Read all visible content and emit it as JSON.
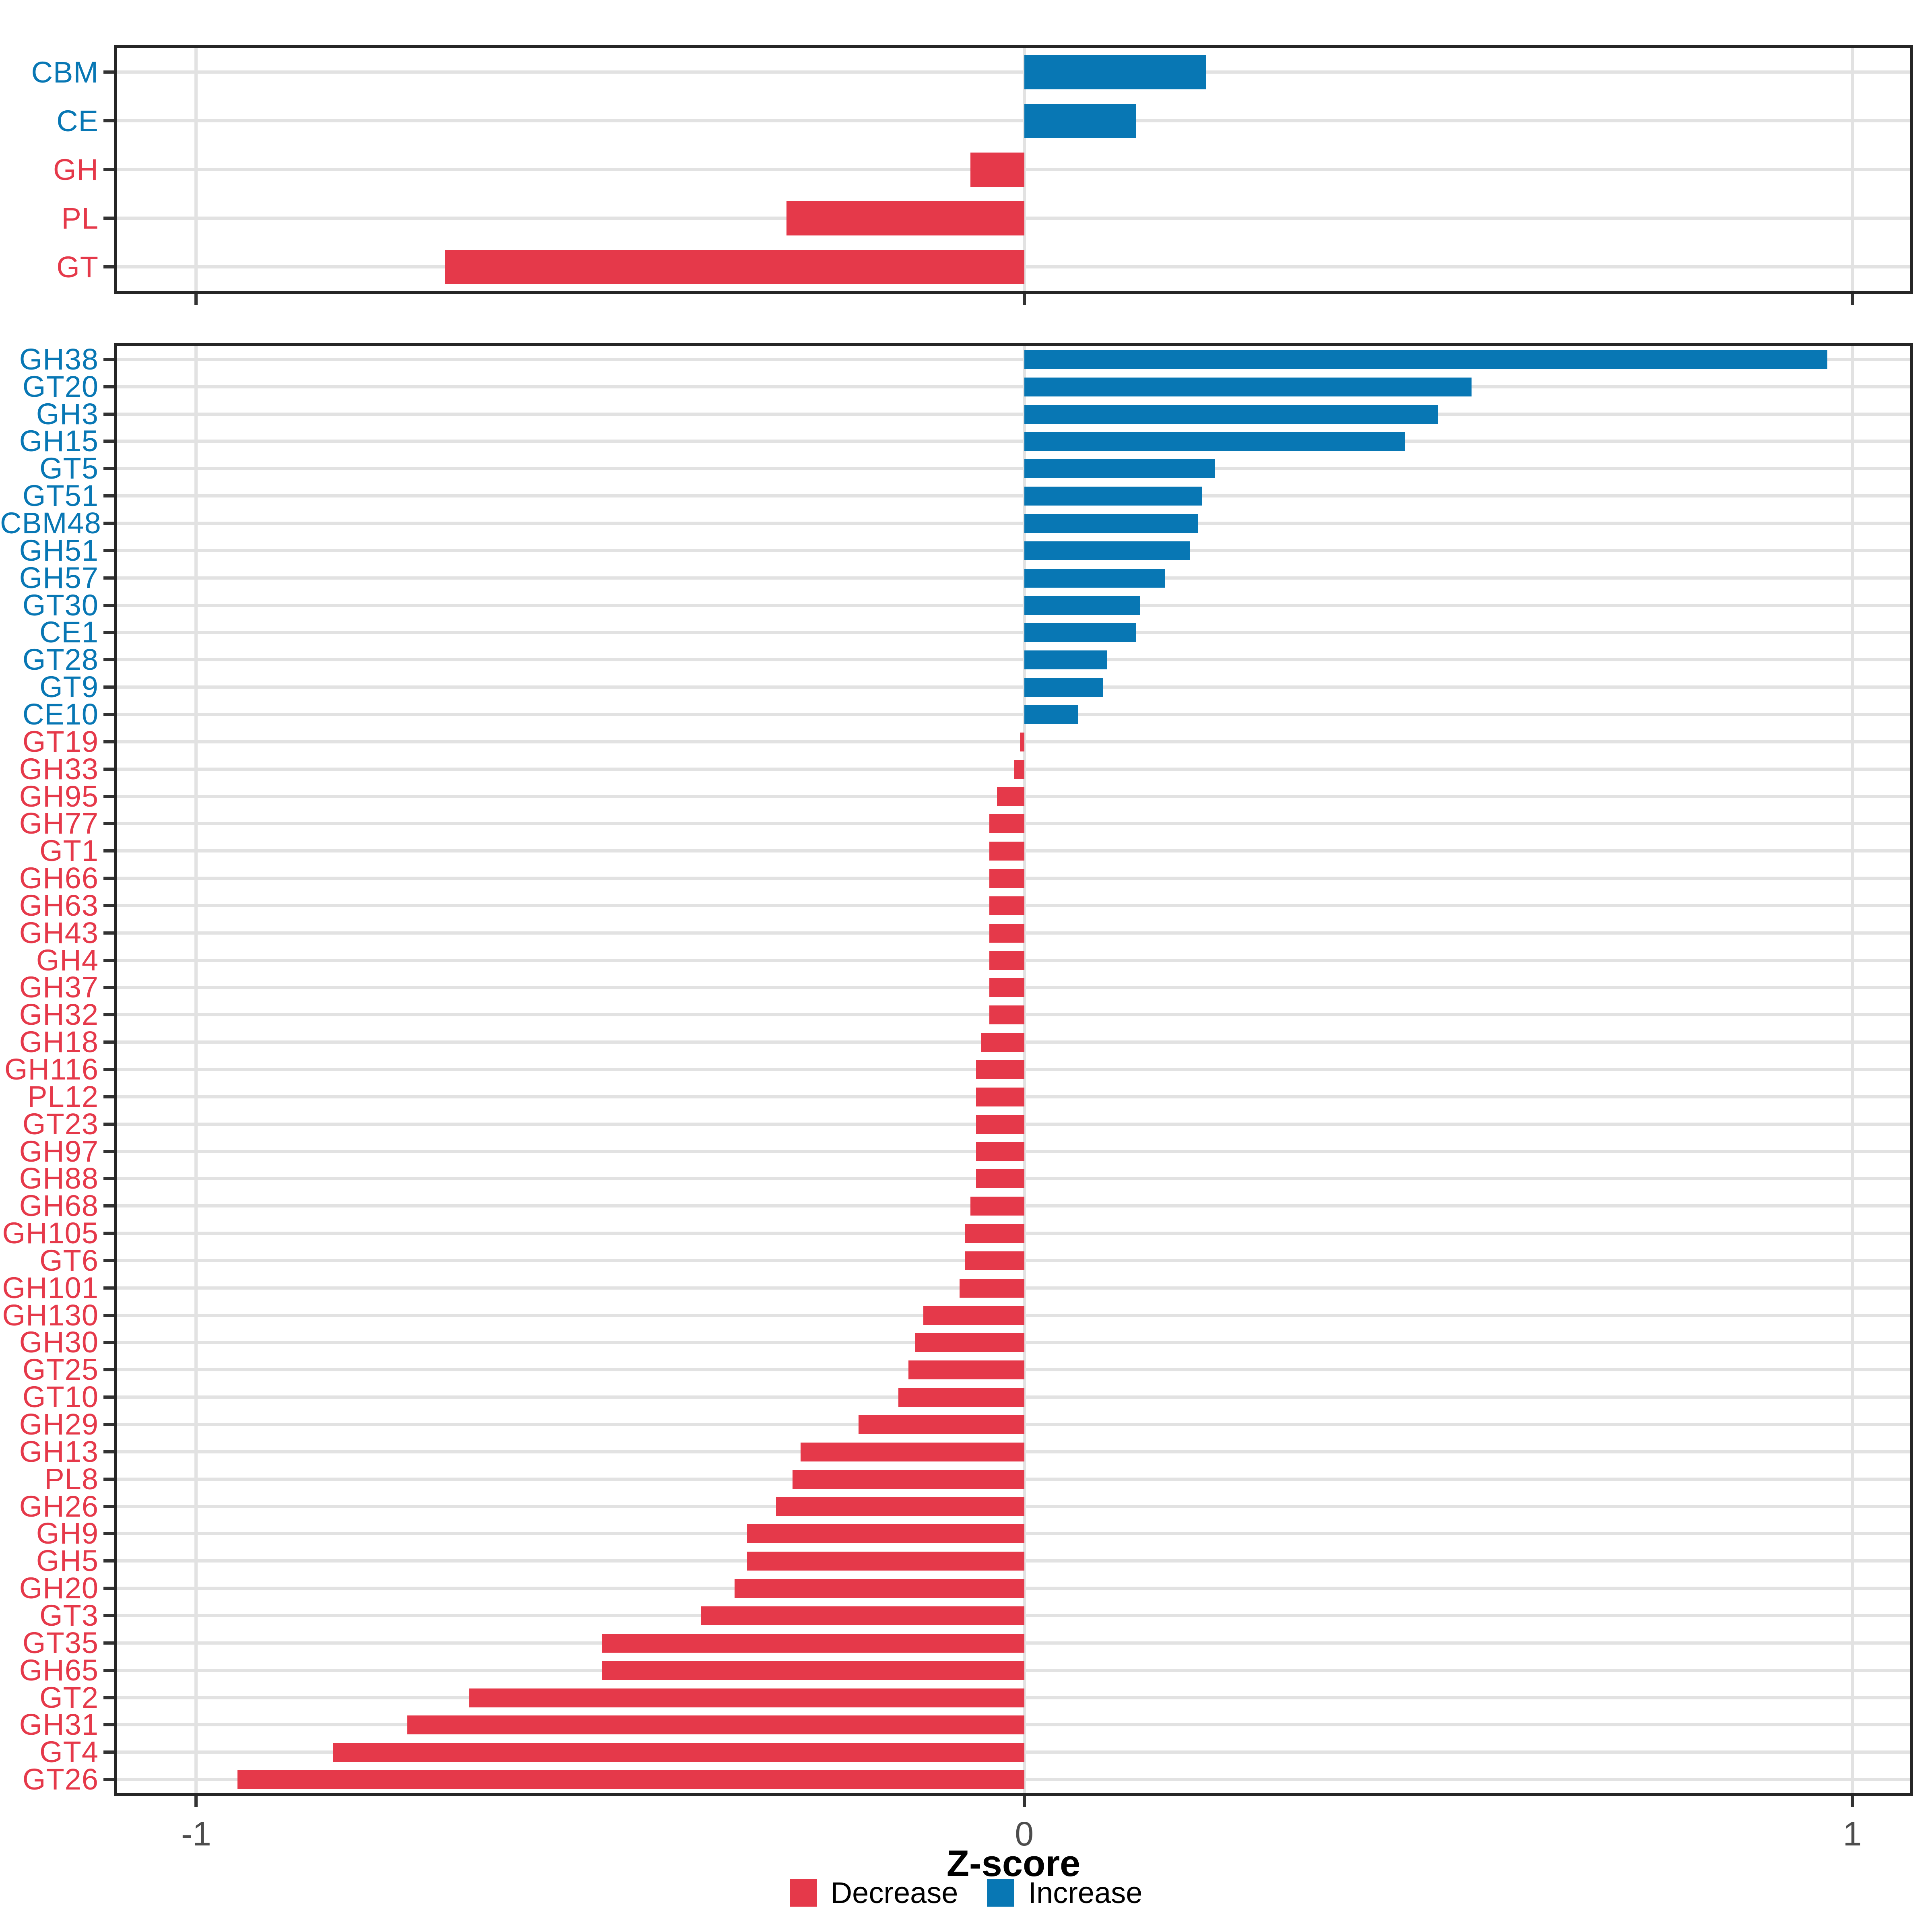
{
  "colors": {
    "decrease": "#e5394a",
    "increase": "#0877b4",
    "grid": "#e2e2e2",
    "panel_border": "#262626",
    "tick_mark": "#333333",
    "tick_label_text": "#4d4d4d",
    "background": "#ffffff"
  },
  "axis": {
    "label": "Z-score",
    "range": [
      -1.096,
      1.07
    ],
    "ticks": [
      {
        "value": -1,
        "label": "-1"
      },
      {
        "value": 0,
        "label": "0"
      },
      {
        "value": 1,
        "label": "1"
      }
    ]
  },
  "legend": {
    "items": [
      {
        "label": "Decrease",
        "color_key": "decrease"
      },
      {
        "label": "Increase",
        "color_key": "increase"
      }
    ]
  },
  "chart_data": [
    {
      "type": "bar",
      "orientation": "horizontal",
      "panel": "top",
      "title": "",
      "xlabel": "Z-score",
      "ylabel": "",
      "xlim": [
        -1.096,
        1.07
      ],
      "grid": true,
      "categories": [
        "CBM",
        "CE",
        "GH",
        "PL",
        "GT"
      ],
      "values": [
        0.22,
        0.135,
        -0.065,
        -0.287,
        -0.7
      ]
    },
    {
      "type": "bar",
      "orientation": "horizontal",
      "panel": "bottom",
      "title": "",
      "xlabel": "Z-score",
      "ylabel": "",
      "xlim": [
        -1.096,
        1.07
      ],
      "grid": true,
      "categories": [
        "GH38",
        "GT20",
        "GH3",
        "GH15",
        "GT5",
        "GT51",
        "CBM48",
        "GH51",
        "GH57",
        "GT30",
        "CE1",
        "GT28",
        "GT9",
        "CE10",
        "GT19",
        "GH33",
        "GH95",
        "GH77",
        "GT1",
        "GH66",
        "GH63",
        "GH43",
        "GH4",
        "GH37",
        "GH32",
        "GH18",
        "GH116",
        "PL12",
        "GT23",
        "GH97",
        "GH88",
        "GH68",
        "GH105",
        "GT6",
        "GH101",
        "GH130",
        "GH30",
        "GT25",
        "GT10",
        "GH29",
        "GH13",
        "PL8",
        "GH26",
        "GH9",
        "GH5",
        "GH20",
        "GT3",
        "GT35",
        "GH65",
        "GT2",
        "GH31",
        "GT4",
        "GT26"
      ],
      "values": [
        0.97,
        0.54,
        0.5,
        0.46,
        0.23,
        0.215,
        0.21,
        0.2,
        0.17,
        0.14,
        0.135,
        0.1,
        0.095,
        0.065,
        -0.005,
        -0.012,
        -0.033,
        -0.042,
        -0.042,
        -0.042,
        -0.042,
        -0.042,
        -0.042,
        -0.042,
        -0.042,
        -0.052,
        -0.058,
        -0.058,
        -0.058,
        -0.058,
        -0.058,
        -0.065,
        -0.072,
        -0.072,
        -0.078,
        -0.122,
        -0.132,
        -0.14,
        -0.152,
        -0.2,
        -0.27,
        -0.28,
        -0.3,
        -0.335,
        -0.335,
        -0.35,
        -0.39,
        -0.51,
        -0.51,
        -0.67,
        -0.745,
        -0.835,
        -0.95
      ]
    }
  ]
}
